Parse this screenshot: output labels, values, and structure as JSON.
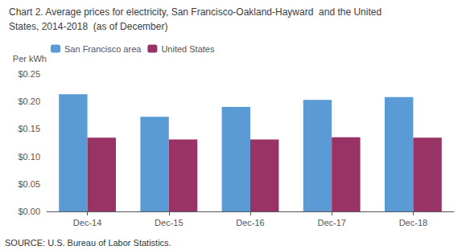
{
  "chart_data": {
    "type": "bar",
    "title": "Chart 2. Average prices for electricity, San Francisco-Oakland-Hayward  and the United",
    "subtitle": "States, 2014-2018  (as of December)",
    "ylabel": "Per kWh",
    "annotations": [
      "SOURCE: U.S. Bureau of Labor Statistics."
    ],
    "categories": [
      "Dec-14",
      "Dec-15",
      "Dec-16",
      "Dec-17",
      "Dec-18"
    ],
    "series": [
      {
        "name": "San Francisco area",
        "color": "#5B9BD5",
        "values": [
          0.213,
          0.172,
          0.19,
          0.203,
          0.208
        ]
      },
      {
        "name": "United States",
        "color": "#993366",
        "values": [
          0.134,
          0.131,
          0.131,
          0.135,
          0.134
        ]
      }
    ],
    "ylim": [
      0,
      0.25
    ],
    "yticks": [
      {
        "value": 0.0,
        "label": "$0.00"
      },
      {
        "value": 0.05,
        "label": "$0.05"
      },
      {
        "value": 0.1,
        "label": "$0.10"
      },
      {
        "value": 0.15,
        "label": "$0.15"
      },
      {
        "value": 0.2,
        "label": "$0.20"
      },
      {
        "value": 0.25,
        "label": "$0.25"
      }
    ],
    "grid": false,
    "legend": "upper left"
  }
}
